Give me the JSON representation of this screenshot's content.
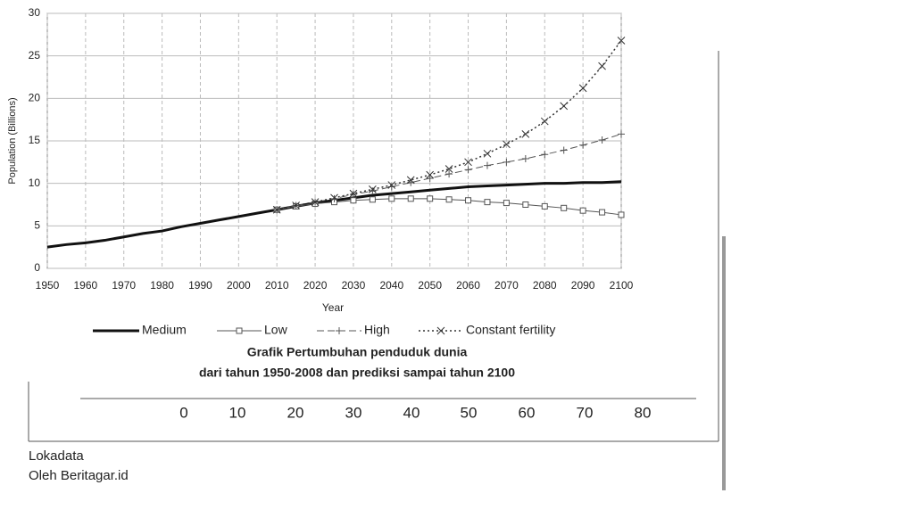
{
  "chart_data": {
    "type": "line",
    "x_label": "Year",
    "y_label": "Population (Billions)",
    "x": [
      1950,
      1955,
      1960,
      1965,
      1970,
      1975,
      1980,
      1985,
      1990,
      1995,
      2000,
      2005,
      2010,
      2015,
      2020,
      2025,
      2030,
      2035,
      2040,
      2045,
      2050,
      2055,
      2060,
      2065,
      2070,
      2075,
      2080,
      2085,
      2090,
      2095,
      2100
    ],
    "series": [
      {
        "name": "Medium",
        "color": "#111111",
        "line_style": "solid",
        "line_width": 3,
        "marker": "none",
        "values": [
          2.5,
          2.8,
          3.0,
          3.3,
          3.7,
          4.1,
          4.4,
          4.9,
          5.3,
          5.7,
          6.1,
          6.5,
          6.9,
          7.3,
          7.7,
          8.0,
          8.3,
          8.6,
          8.8,
          9.0,
          9.2,
          9.4,
          9.6,
          9.7,
          9.8,
          9.9,
          10.0,
          10.0,
          10.1,
          10.1,
          10.2
        ]
      },
      {
        "name": "Low",
        "color": "#555555",
        "line_style": "solid",
        "line_width": 1,
        "marker": "square",
        "values": [
          null,
          null,
          null,
          null,
          null,
          null,
          null,
          null,
          null,
          null,
          null,
          null,
          6.9,
          7.3,
          7.6,
          7.8,
          8.0,
          8.1,
          8.2,
          8.2,
          8.2,
          8.1,
          8.0,
          7.8,
          7.7,
          7.5,
          7.3,
          7.1,
          6.8,
          6.6,
          6.3
        ]
      },
      {
        "name": "High",
        "color": "#555555",
        "line_style": "dashed",
        "line_width": 1,
        "marker": "plus",
        "values": [
          null,
          null,
          null,
          null,
          null,
          null,
          null,
          null,
          null,
          null,
          null,
          null,
          6.9,
          7.4,
          7.8,
          8.2,
          8.7,
          9.1,
          9.6,
          10.1,
          10.6,
          11.1,
          11.6,
          12.1,
          12.5,
          12.9,
          13.4,
          13.9,
          14.5,
          15.1,
          15.8
        ]
      },
      {
        "name": "Constant fertility",
        "color": "#333333",
        "line_style": "dotted",
        "line_width": 1.5,
        "marker": "cross",
        "values": [
          null,
          null,
          null,
          null,
          null,
          null,
          null,
          null,
          null,
          null,
          null,
          null,
          6.9,
          7.4,
          7.8,
          8.3,
          8.8,
          9.3,
          9.8,
          10.4,
          11.0,
          11.7,
          12.5,
          13.5,
          14.6,
          15.8,
          17.3,
          19.1,
          21.2,
          23.8,
          26.8
        ]
      }
    ],
    "xlim": [
      1950,
      2100
    ],
    "xticks": [
      1950,
      1960,
      1970,
      1980,
      1990,
      2000,
      2010,
      2020,
      2030,
      2040,
      2050,
      2060,
      2070,
      2080,
      2090,
      2100
    ],
    "ylim": [
      0,
      30
    ],
    "yticks": [
      0,
      5,
      10,
      15,
      20,
      25,
      30
    ],
    "grid": true,
    "legend": "bottom"
  },
  "caption": [
    "Grafik Pertumbuhan penduduk dunia",
    "dari tahun 1950-2008 dan prediksi sampai tahun 2100"
  ],
  "lower_axis_ticks": [
    0,
    10,
    20,
    30,
    40,
    50,
    60,
    70,
    80
  ],
  "source": [
    "Lokadata",
    "Oleh Beritagar.id"
  ]
}
